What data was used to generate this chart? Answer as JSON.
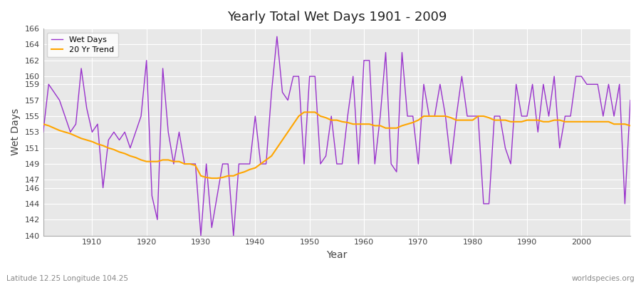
{
  "title": "Yearly Total Wet Days 1901 - 2009",
  "xlabel": "Year",
  "ylabel": "Wet Days",
  "subtitle_left": "Latitude 12.25 Longitude 104.25",
  "subtitle_right": "worldspecies.org",
  "ylim": [
    140,
    166
  ],
  "line_color": "#9932CC",
  "trend_color": "#FFA500",
  "fig_bg_color": "#ffffff",
  "plot_bg_color": "#e8e8e8",
  "grid_color": "#ffffff",
  "years": [
    1901,
    1902,
    1903,
    1904,
    1905,
    1906,
    1907,
    1908,
    1909,
    1910,
    1911,
    1912,
    1913,
    1914,
    1915,
    1916,
    1917,
    1918,
    1919,
    1920,
    1921,
    1922,
    1923,
    1924,
    1925,
    1926,
    1927,
    1928,
    1929,
    1930,
    1931,
    1932,
    1933,
    1934,
    1935,
    1936,
    1937,
    1938,
    1939,
    1940,
    1941,
    1942,
    1943,
    1944,
    1945,
    1946,
    1947,
    1948,
    1949,
    1950,
    1951,
    1952,
    1953,
    1954,
    1955,
    1956,
    1957,
    1958,
    1959,
    1960,
    1961,
    1962,
    1963,
    1964,
    1965,
    1966,
    1967,
    1968,
    1969,
    1970,
    1971,
    1972,
    1973,
    1974,
    1975,
    1976,
    1977,
    1978,
    1979,
    1980,
    1981,
    1982,
    1983,
    1984,
    1985,
    1986,
    1987,
    1988,
    1989,
    1990,
    1991,
    1992,
    1993,
    1994,
    1995,
    1996,
    1997,
    1998,
    1999,
    2000,
    2001,
    2002,
    2003,
    2004,
    2005,
    2006,
    2007,
    2008,
    2009
  ],
  "wet_days": [
    153,
    159,
    158,
    157,
    155,
    153,
    154,
    161,
    156,
    153,
    154,
    146,
    152,
    153,
    152,
    153,
    151,
    153,
    155,
    162,
    145,
    142,
    161,
    153,
    149,
    153,
    149,
    149,
    149,
    140,
    149,
    141,
    145,
    149,
    149,
    140,
    149,
    149,
    149,
    155,
    149,
    149,
    158,
    165,
    158,
    157,
    160,
    160,
    149,
    160,
    160,
    149,
    150,
    155,
    149,
    149,
    155,
    160,
    149,
    162,
    162,
    149,
    155,
    163,
    149,
    148,
    163,
    155,
    155,
    149,
    159,
    155,
    155,
    159,
    155,
    149,
    155,
    160,
    155,
    155,
    155,
    144,
    144,
    155,
    155,
    151,
    149,
    159,
    155,
    155,
    159,
    153,
    159,
    155,
    160,
    151,
    155,
    155,
    160,
    160,
    159,
    159,
    159,
    155,
    159,
    155,
    159,
    144,
    157
  ],
  "trend": [
    154.0,
    153.8,
    153.5,
    153.2,
    153.0,
    152.8,
    152.5,
    152.2,
    152.0,
    151.8,
    151.5,
    151.3,
    151.0,
    150.8,
    150.5,
    150.3,
    150.0,
    149.8,
    149.5,
    149.3,
    149.3,
    149.3,
    149.5,
    149.5,
    149.3,
    149.3,
    149.0,
    149.0,
    148.8,
    147.5,
    147.3,
    147.2,
    147.2,
    147.3,
    147.5,
    147.5,
    147.8,
    148.0,
    148.3,
    148.5,
    149.0,
    149.5,
    150.0,
    151.0,
    152.0,
    153.0,
    154.0,
    155.0,
    155.5,
    155.5,
    155.5,
    155.0,
    154.8,
    154.5,
    154.5,
    154.3,
    154.2,
    154.0,
    154.0,
    154.0,
    154.0,
    153.8,
    153.8,
    153.5,
    153.5,
    153.5,
    153.8,
    154.0,
    154.2,
    154.5,
    155.0,
    155.0,
    155.0,
    155.0,
    155.0,
    154.8,
    154.5,
    154.5,
    154.5,
    154.5,
    155.0,
    155.0,
    154.8,
    154.5,
    154.5,
    154.5,
    154.3,
    154.3,
    154.3,
    154.5,
    154.5,
    154.5,
    154.3,
    154.3,
    154.5,
    154.5,
    154.3,
    154.3,
    154.3,
    154.3,
    154.3,
    154.3,
    154.3,
    154.3,
    154.3,
    154.0,
    154.0,
    154.0,
    153.8
  ],
  "yticks": [
    140,
    142,
    144,
    146,
    147,
    149,
    151,
    153,
    155,
    157,
    159,
    160,
    162,
    164,
    166
  ],
  "xticks": [
    1910,
    1920,
    1930,
    1940,
    1950,
    1960,
    1970,
    1980,
    1990,
    2000
  ]
}
